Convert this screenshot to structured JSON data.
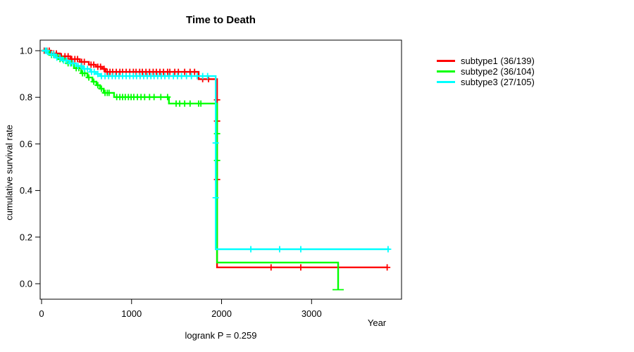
{
  "title": "Time to Death",
  "footer": "logrank P = 0.259",
  "x_axis": {
    "label": "Year",
    "tick_labels": [
      "0",
      "1000",
      "2000",
      "3000"
    ]
  },
  "y_axis": {
    "label": "cumulative survival rate",
    "tick_labels": [
      "0.0",
      "0.2",
      "0.4",
      "0.6",
      "0.8",
      "1.0"
    ]
  },
  "legend": {
    "items": [
      {
        "label": "subtype1 (36/139)",
        "color": "#ff0000"
      },
      {
        "label": "subtype2 (36/104)",
        "color": "#00ff00"
      },
      {
        "label": "subtype3 (27/105)",
        "color": "#00ffff"
      }
    ]
  },
  "chart_data": {
    "type": "line",
    "subtype": "kaplan-meier-step",
    "title": "Time to Death",
    "xlabel": "Year",
    "ylabel": "cumulative survival rate",
    "annotation": "logrank P = 0.259",
    "xlim": [
      0,
      4000
    ],
    "ylim": [
      0,
      1
    ],
    "x_ticks": [
      0,
      1000,
      2000,
      3000
    ],
    "y_ticks": [
      0.0,
      0.2,
      0.4,
      0.6,
      0.8,
      1.0
    ],
    "grid": false,
    "legend_position": "right-outside",
    "series": [
      {
        "id": "subtype1",
        "name": "subtype1 (36/139)",
        "events_over_n": "36/139",
        "color": "#ff0000",
        "steps": [
          [
            0,
            1.0
          ],
          [
            100,
            0.988
          ],
          [
            205,
            0.976
          ],
          [
            320,
            0.964
          ],
          [
            425,
            0.952
          ],
          [
            525,
            0.94
          ],
          [
            605,
            0.931
          ],
          [
            675,
            0.922
          ],
          [
            710,
            0.909
          ],
          [
            1745,
            0.878
          ],
          [
            1950,
            0.07
          ],
          [
            3840,
            0.07
          ]
        ],
        "censors": [
          [
            30,
            1.0
          ],
          [
            60,
            1.0
          ],
          [
            85,
            1.0
          ],
          [
            135,
            0.988
          ],
          [
            165,
            0.988
          ],
          [
            220,
            0.976
          ],
          [
            260,
            0.976
          ],
          [
            295,
            0.976
          ],
          [
            335,
            0.964
          ],
          [
            370,
            0.964
          ],
          [
            400,
            0.964
          ],
          [
            445,
            0.952
          ],
          [
            475,
            0.952
          ],
          [
            550,
            0.94
          ],
          [
            580,
            0.94
          ],
          [
            625,
            0.931
          ],
          [
            655,
            0.931
          ],
          [
            695,
            0.922
          ],
          [
            730,
            0.909
          ],
          [
            760,
            0.909
          ],
          [
            790,
            0.909
          ],
          [
            830,
            0.909
          ],
          [
            870,
            0.909
          ],
          [
            900,
            0.909
          ],
          [
            940,
            0.909
          ],
          [
            980,
            0.909
          ],
          [
            1020,
            0.909
          ],
          [
            1050,
            0.909
          ],
          [
            1090,
            0.909
          ],
          [
            1120,
            0.909
          ],
          [
            1160,
            0.909
          ],
          [
            1200,
            0.909
          ],
          [
            1240,
            0.909
          ],
          [
            1275,
            0.909
          ],
          [
            1315,
            0.909
          ],
          [
            1355,
            0.909
          ],
          [
            1400,
            0.909
          ],
          [
            1425,
            0.909
          ],
          [
            1480,
            0.909
          ],
          [
            1520,
            0.909
          ],
          [
            1590,
            0.909
          ],
          [
            1650,
            0.909
          ],
          [
            1700,
            0.909
          ],
          [
            1790,
            0.878
          ],
          [
            1855,
            0.878
          ],
          [
            1950,
            0.789
          ],
          [
            1950,
            0.698
          ],
          [
            1950,
            0.447
          ],
          [
            2550,
            0.07
          ],
          [
            2880,
            0.07
          ],
          [
            3840,
            0.07
          ]
        ],
        "terminal_cap": false
      },
      {
        "id": "subtype2",
        "name": "subtype2 (36/104)",
        "events_over_n": "36/104",
        "color": "#00ff00",
        "steps": [
          [
            0,
            1.0
          ],
          [
            85,
            0.982
          ],
          [
            180,
            0.964
          ],
          [
            275,
            0.946
          ],
          [
            360,
            0.925
          ],
          [
            440,
            0.903
          ],
          [
            510,
            0.885
          ],
          [
            565,
            0.867
          ],
          [
            610,
            0.852
          ],
          [
            650,
            0.837
          ],
          [
            690,
            0.819
          ],
          [
            805,
            0.801
          ],
          [
            1415,
            0.773
          ],
          [
            1950,
            0.091
          ],
          [
            3295,
            0.0
          ]
        ],
        "censors": [
          [
            45,
            1.0
          ],
          [
            110,
            0.982
          ],
          [
            135,
            0.982
          ],
          [
            205,
            0.964
          ],
          [
            235,
            0.964
          ],
          [
            295,
            0.946
          ],
          [
            330,
            0.946
          ],
          [
            385,
            0.925
          ],
          [
            415,
            0.925
          ],
          [
            455,
            0.903
          ],
          [
            480,
            0.903
          ],
          [
            525,
            0.885
          ],
          [
            580,
            0.867
          ],
          [
            625,
            0.852
          ],
          [
            665,
            0.837
          ],
          [
            705,
            0.819
          ],
          [
            730,
            0.819
          ],
          [
            750,
            0.819
          ],
          [
            835,
            0.801
          ],
          [
            870,
            0.801
          ],
          [
            900,
            0.801
          ],
          [
            930,
            0.801
          ],
          [
            965,
            0.801
          ],
          [
            995,
            0.801
          ],
          [
            1025,
            0.801
          ],
          [
            1065,
            0.801
          ],
          [
            1105,
            0.801
          ],
          [
            1145,
            0.801
          ],
          [
            1200,
            0.801
          ],
          [
            1250,
            0.801
          ],
          [
            1325,
            0.801
          ],
          [
            1400,
            0.801
          ],
          [
            1495,
            0.773
          ],
          [
            1535,
            0.773
          ],
          [
            1590,
            0.773
          ],
          [
            1650,
            0.773
          ],
          [
            1745,
            0.773
          ],
          [
            1770,
            0.773
          ],
          [
            1950,
            0.644
          ],
          [
            1950,
            0.529
          ]
        ],
        "terminal_cap": true
      },
      {
        "id": "subtype3",
        "name": "subtype3 (27/105)",
        "events_over_n": "27/105",
        "color": "#00ffff",
        "steps": [
          [
            0,
            1.0
          ],
          [
            70,
            0.985
          ],
          [
            150,
            0.97
          ],
          [
            225,
            0.958
          ],
          [
            305,
            0.946
          ],
          [
            385,
            0.934
          ],
          [
            460,
            0.922
          ],
          [
            540,
            0.909
          ],
          [
            605,
            0.9
          ],
          [
            650,
            0.891
          ],
          [
            1935,
            0.148
          ],
          [
            3865,
            0.148
          ]
        ],
        "censors": [
          [
            40,
            1.0
          ],
          [
            55,
            1.0
          ],
          [
            110,
            0.985
          ],
          [
            135,
            0.985
          ],
          [
            170,
            0.97
          ],
          [
            205,
            0.97
          ],
          [
            245,
            0.958
          ],
          [
            275,
            0.958
          ],
          [
            320,
            0.946
          ],
          [
            350,
            0.946
          ],
          [
            405,
            0.934
          ],
          [
            440,
            0.934
          ],
          [
            475,
            0.922
          ],
          [
            510,
            0.922
          ],
          [
            555,
            0.909
          ],
          [
            585,
            0.909
          ],
          [
            625,
            0.9
          ],
          [
            665,
            0.891
          ],
          [
            705,
            0.891
          ],
          [
            745,
            0.891
          ],
          [
            785,
            0.891
          ],
          [
            820,
            0.891
          ],
          [
            860,
            0.891
          ],
          [
            900,
            0.891
          ],
          [
            940,
            0.891
          ],
          [
            980,
            0.891
          ],
          [
            1020,
            0.891
          ],
          [
            1055,
            0.891
          ],
          [
            1095,
            0.891
          ],
          [
            1135,
            0.891
          ],
          [
            1175,
            0.891
          ],
          [
            1215,
            0.891
          ],
          [
            1250,
            0.891
          ],
          [
            1290,
            0.891
          ],
          [
            1330,
            0.891
          ],
          [
            1370,
            0.891
          ],
          [
            1415,
            0.891
          ],
          [
            1465,
            0.891
          ],
          [
            1510,
            0.891
          ],
          [
            1555,
            0.891
          ],
          [
            1610,
            0.891
          ],
          [
            1665,
            0.891
          ],
          [
            1730,
            0.891
          ],
          [
            1790,
            0.891
          ],
          [
            1845,
            0.891
          ],
          [
            1935,
            0.604
          ],
          [
            1935,
            0.369
          ],
          [
            2325,
            0.148
          ],
          [
            2645,
            0.148
          ],
          [
            2880,
            0.148
          ],
          [
            3850,
            0.148
          ]
        ],
        "terminal_cap": false
      }
    ]
  }
}
